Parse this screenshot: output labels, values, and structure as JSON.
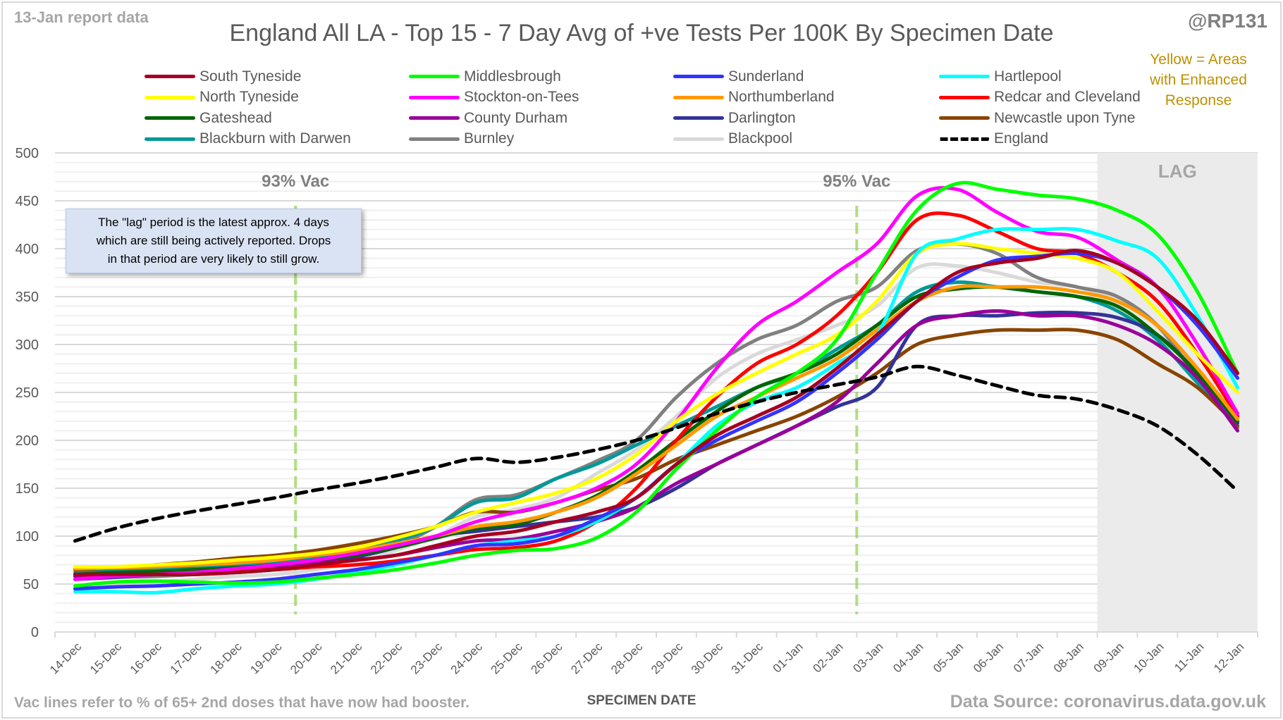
{
  "header": {
    "report_date": "13-Jan report data",
    "handle": "@RP131",
    "enhanced_note": [
      "Yellow = Areas",
      "with Enhanced",
      "Response"
    ]
  },
  "info_box": {
    "lines": [
      "The \"lag\" period is the latest approx. 4 days",
      "which are still being actively reported. Drops",
      "in that period are very likely to still grow."
    ]
  },
  "footer": {
    "left_note": "Vac lines refer to % of 65+ 2nd doses that have now had booster.",
    "source": "Data Source: coronavirus.data.gov.uk"
  },
  "chart_data": {
    "type": "line",
    "title": "England All LA - Top 15 - 7 Day Avg of +ve Tests Per 100K By Specimen Date",
    "xlabel": "SPECIMEN DATE",
    "ylabel": "",
    "ylim": [
      0,
      500
    ],
    "yticks": [
      0,
      50,
      100,
      150,
      200,
      250,
      300,
      350,
      400,
      450,
      500
    ],
    "minor_grid_step": 10,
    "grid": true,
    "legend_position": "top",
    "categories": [
      "14-Dec",
      "15-Dec",
      "16-Dec",
      "17-Dec",
      "18-Dec",
      "19-Dec",
      "20-Dec",
      "21-Dec",
      "22-Dec",
      "23-Dec",
      "24-Dec",
      "25-Dec",
      "26-Dec",
      "27-Dec",
      "28-Dec",
      "29-Dec",
      "30-Dec",
      "31-Dec",
      "01-Jan",
      "02-Jan",
      "03-Jan",
      "04-Jan",
      "05-Jan",
      "06-Jan",
      "07-Jan",
      "08-Jan",
      "09-Jan",
      "10-Jan",
      "11-Jan",
      "12-Jan"
    ],
    "lag_region": {
      "label": "LAG",
      "start": "09-Jan",
      "end": "12-Jan",
      "color": "#ebebeb"
    },
    "annotations": [
      {
        "label": "93% Vac",
        "between": [
          "19-Dec",
          "20-Dec"
        ],
        "color": "#92d050"
      },
      {
        "label": "95% Vac",
        "between": [
          "02-Jan",
          "03-Jan"
        ],
        "color": "#92d050"
      }
    ],
    "series": [
      {
        "name": "South Tyneside",
        "color": "#a50021",
        "dashed": false,
        "values": [
          60,
          60,
          60,
          60,
          62,
          65,
          70,
          75,
          80,
          90,
          100,
          105,
          115,
          125,
          140,
          175,
          205,
          225,
          245,
          275,
          310,
          345,
          375,
          385,
          390,
          398,
          385,
          360,
          325,
          270
        ]
      },
      {
        "name": "Middlesbrough",
        "color": "#00ff00",
        "dashed": false,
        "values": [
          48,
          52,
          53,
          52,
          51,
          52,
          56,
          60,
          65,
          72,
          80,
          85,
          87,
          98,
          125,
          170,
          210,
          245,
          270,
          305,
          375,
          440,
          468,
          462,
          456,
          452,
          440,
          415,
          355,
          270
        ]
      },
      {
        "name": "Sunderland",
        "color": "#3333ff",
        "dashed": false,
        "values": [
          45,
          47,
          48,
          50,
          52,
          55,
          60,
          65,
          72,
          80,
          90,
          92,
          100,
          118,
          140,
          175,
          200,
          220,
          240,
          270,
          305,
          345,
          370,
          388,
          392,
          395,
          385,
          360,
          320,
          265
        ]
      },
      {
        "name": "Hartlepool",
        "color": "#00ffff",
        "dashed": false,
        "values": [
          42,
          42,
          41,
          45,
          48,
          50,
          55,
          62,
          70,
          80,
          90,
          95,
          100,
          115,
          140,
          175,
          215,
          240,
          255,
          280,
          310,
          395,
          410,
          420,
          420,
          420,
          408,
          390,
          330,
          255
        ]
      },
      {
        "name": "North Tyneside",
        "color": "#ffff00",
        "dashed": false,
        "values": [
          68,
          68,
          70,
          72,
          75,
          78,
          82,
          88,
          98,
          110,
          125,
          135,
          145,
          160,
          185,
          220,
          248,
          270,
          290,
          310,
          345,
          395,
          405,
          400,
          395,
          390,
          375,
          335,
          290,
          250
        ]
      },
      {
        "name": "Stockton-on-Tees",
        "color": "#ff00ff",
        "dashed": false,
        "values": [
          55,
          58,
          60,
          62,
          66,
          70,
          75,
          82,
          90,
          100,
          115,
          125,
          135,
          150,
          175,
          220,
          275,
          320,
          345,
          375,
          405,
          455,
          462,
          438,
          418,
          412,
          388,
          360,
          300,
          228
        ]
      },
      {
        "name": "Northumberland",
        "color": "#ff9900",
        "dashed": false,
        "values": [
          66,
          67,
          68,
          70,
          72,
          75,
          80,
          85,
          92,
          100,
          110,
          115,
          125,
          140,
          165,
          195,
          225,
          245,
          265,
          285,
          315,
          345,
          360,
          360,
          360,
          355,
          345,
          320,
          275,
          222
        ]
      },
      {
        "name": "Redcar and Cleveland",
        "color": "#ff0000",
        "dashed": false,
        "values": [
          60,
          59,
          60,
          62,
          64,
          65,
          68,
          70,
          74,
          80,
          86,
          88,
          95,
          115,
          150,
          200,
          245,
          280,
          300,
          330,
          375,
          430,
          435,
          418,
          400,
          395,
          375,
          345,
          290,
          225
        ]
      },
      {
        "name": "Gateshead",
        "color": "#006600",
        "dashed": false,
        "values": [
          60,
          62,
          63,
          65,
          67,
          70,
          75,
          80,
          88,
          98,
          108,
          112,
          125,
          142,
          168,
          200,
          230,
          255,
          270,
          290,
          320,
          350,
          358,
          360,
          355,
          350,
          340,
          310,
          270,
          220
        ]
      },
      {
        "name": "County Durham",
        "color": "#990099",
        "dashed": false,
        "values": [
          58,
          59,
          61,
          63,
          65,
          68,
          72,
          75,
          80,
          88,
          95,
          97,
          105,
          115,
          130,
          155,
          175,
          195,
          215,
          240,
          280,
          320,
          330,
          335,
          330,
          330,
          320,
          300,
          265,
          210
        ]
      },
      {
        "name": "Darlington",
        "color": "#333399",
        "dashed": false,
        "values": [
          55,
          57,
          60,
          62,
          65,
          68,
          72,
          78,
          88,
          100,
          105,
          110,
          115,
          120,
          130,
          150,
          175,
          195,
          215,
          235,
          255,
          320,
          330,
          330,
          333,
          333,
          328,
          310,
          270,
          218
        ]
      },
      {
        "name": "Newcastle upon Tyne",
        "color": "#884400",
        "dashed": false,
        "values": [
          65,
          67,
          70,
          73,
          77,
          80,
          85,
          92,
          100,
          110,
          125,
          125,
          135,
          148,
          160,
          180,
          195,
          210,
          225,
          245,
          270,
          300,
          310,
          315,
          315,
          315,
          305,
          280,
          255,
          215
        ]
      },
      {
        "name": "Blackburn with Darwen",
        "color": "#009999",
        "dashed": false,
        "values": [
          62,
          64,
          66,
          68,
          70,
          73,
          78,
          85,
          95,
          110,
          135,
          140,
          160,
          175,
          195,
          215,
          235,
          255,
          270,
          295,
          320,
          355,
          365,
          360,
          355,
          350,
          335,
          305,
          260,
          215
        ]
      },
      {
        "name": "Burnley",
        "color": "#808080",
        "dashed": false,
        "values": [
          55,
          57,
          58,
          60,
          62,
          65,
          70,
          78,
          90,
          110,
          138,
          143,
          160,
          178,
          200,
          245,
          280,
          305,
          320,
          345,
          360,
          398,
          405,
          395,
          370,
          360,
          350,
          320,
          265,
          213
        ]
      },
      {
        "name": "Blackpool",
        "color": "#d9d9d9",
        "dashed": false,
        "values": [
          45,
          48,
          52,
          55,
          58,
          60,
          65,
          72,
          85,
          100,
          120,
          128,
          140,
          165,
          190,
          225,
          265,
          290,
          305,
          320,
          340,
          380,
          382,
          375,
          365,
          360,
          345,
          318,
          268,
          210
        ]
      },
      {
        "name": "England",
        "color": "#000000",
        "dashed": true,
        "values": [
          95,
          108,
          118,
          126,
          133,
          140,
          148,
          155,
          163,
          172,
          181,
          177,
          182,
          190,
          200,
          213,
          228,
          240,
          250,
          258,
          266,
          277,
          268,
          257,
          247,
          243,
          232,
          215,
          185,
          147
        ]
      }
    ]
  }
}
